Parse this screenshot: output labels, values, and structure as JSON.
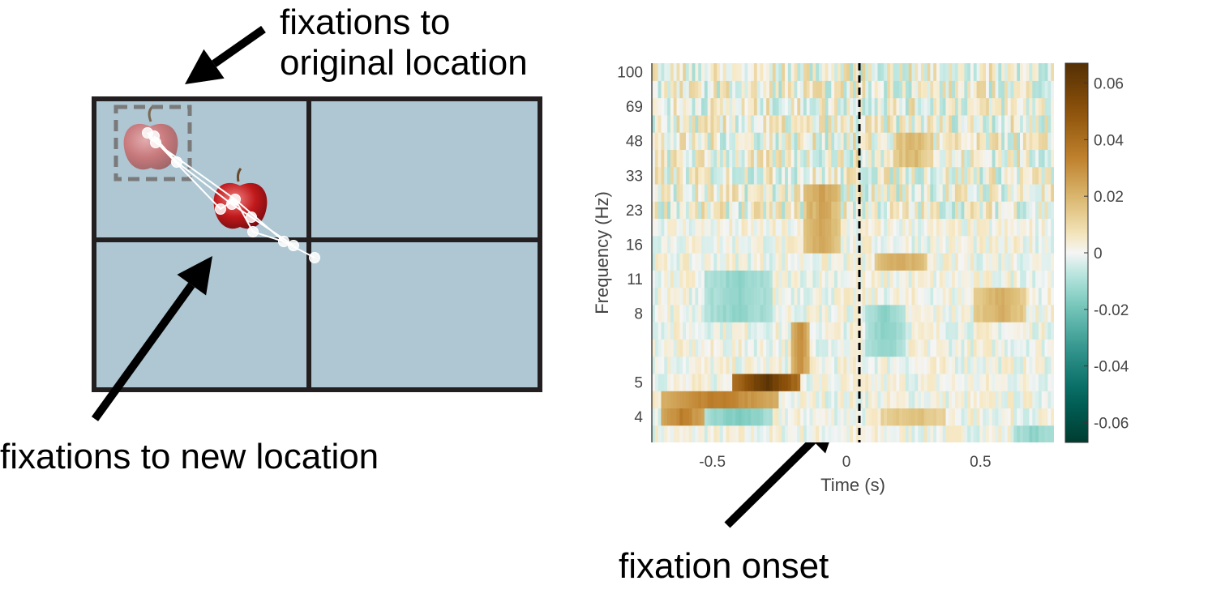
{
  "annotations": {
    "top": [
      "fixations to",
      "original location"
    ],
    "bottom_left": "fixations to new location",
    "bottom_right": "fixation onset"
  },
  "colors": {
    "screen_fill": "#aec7d3",
    "screen_border": "#231f20",
    "dashed_box": "#7a7a7a",
    "scanpath": "#ffffff",
    "apple_red": "#c0191b",
    "positive_max": "#543005",
    "negative_max": "#003c30",
    "zero": "#f5f5f5",
    "dashed_line": "#000000"
  },
  "scene": {
    "icons": [
      "apple-icon-original",
      "apple-icon-new",
      "arrow-icon"
    ]
  },
  "chart_data": {
    "type": "heatmap",
    "xlabel": "Time (s)",
    "ylabel": "Frequency (Hz)",
    "xlim": [
      -0.75,
      0.75
    ],
    "x_ticks": [
      -0.5,
      0,
      0.5
    ],
    "x_tick_labels": [
      "-0.5",
      "0",
      "0.5"
    ],
    "y_ticks": [
      100,
      69,
      48,
      33,
      23,
      16,
      11,
      8,
      5,
      4
    ],
    "y_tick_labels": [
      "100",
      "69",
      "48",
      "33",
      "23",
      "16",
      "11",
      "8",
      "5",
      "4"
    ],
    "y_scale": "log",
    "colorbar": {
      "range": [
        -0.067,
        0.067
      ],
      "ticks": [
        0.06,
        0.04,
        0.02,
        0,
        -0.02,
        -0.04,
        -0.06
      ],
      "tick_labels": [
        "0.06",
        "0.04",
        "0.02",
        "0",
        "-0.02",
        "-0.04",
        "-0.06"
      ]
    },
    "reference_line": {
      "x": 0,
      "style": "dashed",
      "label": "fixation onset"
    },
    "frequency_rows_hz": [
      3.6,
      4,
      4.5,
      5,
      5.6,
      6.3,
      7.1,
      8,
      9.5,
      11,
      13,
      16,
      19,
      23,
      28,
      33,
      40,
      48,
      57,
      69,
      83,
      100
    ],
    "features": [
      {
        "t_start": -0.45,
        "t_end": -0.2,
        "f_low": 4.7,
        "f_high": 5.3,
        "value": 0.065
      },
      {
        "t_start": -0.72,
        "t_end": -0.28,
        "f_low": 4.2,
        "f_high": 4.8,
        "value": 0.035
      },
      {
        "t_start": -0.72,
        "t_end": -0.55,
        "f_low": 3.8,
        "f_high": 4.2,
        "value": 0.035
      },
      {
        "t_start": -0.23,
        "t_end": -0.16,
        "f_low": 5.3,
        "f_high": 7.5,
        "value": 0.03
      },
      {
        "t_start": -0.55,
        "t_end": -0.3,
        "f_low": 3.8,
        "f_high": 4.2,
        "value": -0.018
      },
      {
        "t_start": -0.18,
        "t_end": -0.05,
        "f_low": 16,
        "f_high": 28,
        "value": 0.025
      },
      {
        "t_start": 0.08,
        "t_end": 0.28,
        "f_low": 12,
        "f_high": 15,
        "value": 0.024
      },
      {
        "t_start": 0.15,
        "t_end": 0.3,
        "f_low": 36,
        "f_high": 54,
        "value": 0.02
      },
      {
        "t_start": 0.45,
        "t_end": 0.65,
        "f_low": 7.5,
        "f_high": 9.5,
        "value": 0.022
      },
      {
        "t_start": 0.1,
        "t_end": 0.35,
        "f_low": 3.8,
        "f_high": 4.2,
        "value": 0.018
      },
      {
        "t_start": -0.55,
        "t_end": -0.3,
        "f_low": 8,
        "f_high": 11,
        "value": -0.015
      },
      {
        "t_start": 0.05,
        "t_end": 0.2,
        "f_low": 6,
        "f_high": 9,
        "value": -0.015
      },
      {
        "t_start": 0.6,
        "t_end": 0.75,
        "f_low": 3.5,
        "f_high": 3.8,
        "value": -0.015
      }
    ]
  }
}
